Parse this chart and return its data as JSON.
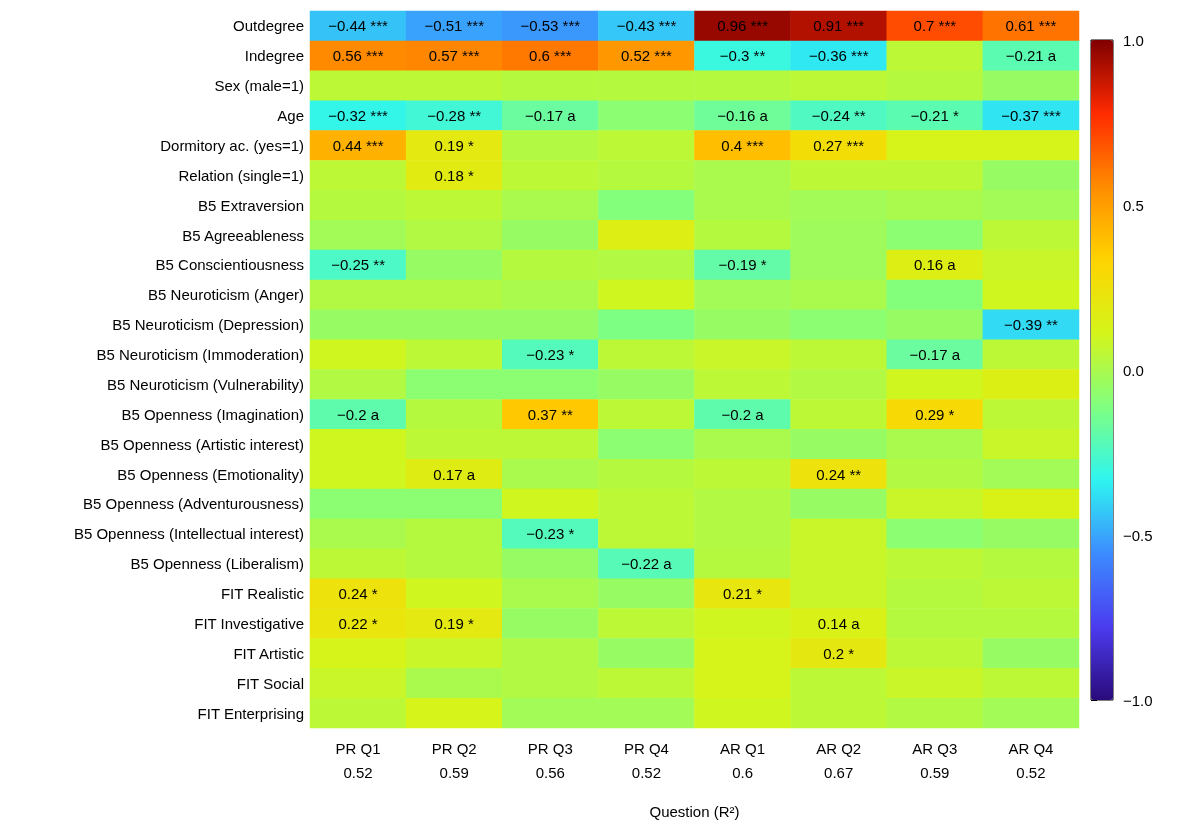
{
  "chart_data": {
    "type": "heatmap",
    "xlabel": "Question (R²)",
    "categories": [
      "PR Q1\n0.52",
      "PR Q2\n0.59",
      "PR Q3\n0.56",
      "PR Q4\n0.52",
      "AR Q1\n0.6",
      "AR Q2\n0.67",
      "AR Q3\n0.59",
      "AR Q4\n0.52"
    ],
    "y_categories": [
      "Outdegree",
      "Indegree",
      "Sex (male=1)",
      "Age",
      "Dormitory ac. (yes=1)",
      "Relation (single=1)",
      "B5 Extraversion",
      "B5 Agreeableness",
      "B5 Conscientiousness",
      "B5 Neuroticism (Anger)",
      "B5 Neuroticism (Depression)",
      "B5 Neuroticism (Immoderation)",
      "B5 Neuroticism (Vulnerability)",
      "B5 Openness (Imagination)",
      "B5 Openness (Artistic interest)",
      "B5 Openness (Emotionality)",
      "B5 Openness (Adventurousness)",
      "B5 Openness (Intellectual interest)",
      "B5 Openness (Liberalism)",
      "FIT Realistic",
      "FIT Investigative",
      "FIT Artistic",
      "FIT Social",
      "FIT Enterprising"
    ],
    "cells": [
      [
        -0.44,
        -0.51,
        -0.53,
        -0.43,
        0.96,
        0.91,
        0.7,
        0.61
      ],
      [
        0.56,
        0.57,
        0.6,
        0.52,
        -0.3,
        -0.36,
        0.05,
        -0.21
      ],
      [
        0.05,
        0.05,
        0.03,
        0.03,
        0.03,
        0.05,
        0.03,
        -0.05
      ],
      [
        -0.32,
        -0.28,
        -0.17,
        -0.08,
        -0.16,
        -0.24,
        -0.21,
        -0.37
      ],
      [
        0.44,
        0.19,
        0.02,
        0.05,
        0.4,
        0.27,
        0.12,
        0.12
      ],
      [
        0.05,
        0.18,
        0.05,
        0.03,
        0.0,
        0.05,
        0.05,
        -0.05
      ],
      [
        0.03,
        0.05,
        0.0,
        -0.1,
        0.0,
        -0.02,
        0.0,
        -0.02
      ],
      [
        -0.02,
        0.02,
        -0.05,
        0.16,
        0.03,
        -0.03,
        -0.08,
        0.05
      ],
      [
        -0.25,
        -0.05,
        0.03,
        0.02,
        -0.19,
        -0.03,
        0.16,
        0.08
      ],
      [
        0.02,
        0.02,
        0.0,
        0.1,
        -0.02,
        0.0,
        -0.1,
        0.1
      ],
      [
        -0.05,
        -0.05,
        -0.05,
        -0.12,
        -0.05,
        -0.08,
        -0.05,
        -0.39
      ],
      [
        0.1,
        0.05,
        -0.23,
        0.05,
        0.08,
        0.05,
        -0.17,
        0.05
      ],
      [
        0.02,
        -0.08,
        -0.08,
        -0.05,
        0.05,
        0.02,
        0.1,
        0.15
      ],
      [
        -0.2,
        0.03,
        0.37,
        0.05,
        -0.2,
        0.05,
        0.29,
        0.05
      ],
      [
        0.1,
        0.05,
        0.05,
        -0.08,
        0.0,
        -0.05,
        0.0,
        0.08
      ],
      [
        0.1,
        0.17,
        0.0,
        0.03,
        0.05,
        0.24,
        0.02,
        -0.02
      ],
      [
        -0.08,
        -0.08,
        0.1,
        0.05,
        0.02,
        -0.05,
        0.08,
        0.13
      ],
      [
        0.0,
        0.03,
        -0.23,
        0.05,
        0.02,
        0.08,
        -0.08,
        -0.05
      ],
      [
        0.05,
        0.03,
        -0.05,
        -0.22,
        0.03,
        0.08,
        0.05,
        0.03
      ],
      [
        0.24,
        0.1,
        0.0,
        -0.05,
        0.21,
        0.08,
        0.03,
        0.05
      ],
      [
        0.22,
        0.19,
        -0.05,
        0.05,
        0.1,
        0.14,
        0.03,
        0.03
      ],
      [
        0.12,
        0.08,
        0.02,
        -0.05,
        0.12,
        0.2,
        0.05,
        -0.05
      ],
      [
        0.08,
        0.0,
        0.02,
        0.05,
        0.12,
        0.05,
        0.08,
        0.05
      ],
      [
        0.05,
        0.12,
        -0.02,
        -0.02,
        0.1,
        0.05,
        0.02,
        -0.02
      ]
    ],
    "cell_labels": [
      [
        "−0.44 ***",
        "−0.51 ***",
        "−0.53 ***",
        "−0.43 ***",
        "0.96 ***",
        "0.91 ***",
        "0.7 ***",
        "0.61 ***"
      ],
      [
        "0.56 ***",
        "0.57 ***",
        "0.6 ***",
        "0.52 ***",
        "−0.3 **",
        "−0.36 ***",
        null,
        "−0.21 a"
      ],
      [
        null,
        null,
        null,
        null,
        null,
        null,
        null,
        null
      ],
      [
        "−0.32 ***",
        "−0.28 **",
        "−0.17 a",
        null,
        "−0.16 a",
        "−0.24 **",
        "−0.21 *",
        "−0.37 ***"
      ],
      [
        "0.44 ***",
        "0.19 *",
        null,
        null,
        "0.4 ***",
        "0.27 ***",
        null,
        null
      ],
      [
        null,
        "0.18 *",
        null,
        null,
        null,
        null,
        null,
        null
      ],
      [
        null,
        null,
        null,
        null,
        null,
        null,
        null,
        null
      ],
      [
        null,
        null,
        null,
        null,
        null,
        null,
        null,
        null
      ],
      [
        "−0.25 **",
        null,
        null,
        null,
        "−0.19 *",
        null,
        "0.16 a",
        null
      ],
      [
        null,
        null,
        null,
        null,
        null,
        null,
        null,
        null
      ],
      [
        null,
        null,
        null,
        null,
        null,
        null,
        null,
        "−0.39 **"
      ],
      [
        null,
        null,
        "−0.23 *",
        null,
        null,
        null,
        "−0.17 a",
        null
      ],
      [
        null,
        null,
        null,
        null,
        null,
        null,
        null,
        null
      ],
      [
        "−0.2 a",
        null,
        "0.37 **",
        null,
        "−0.2 a",
        null,
        "0.29 *",
        null
      ],
      [
        null,
        null,
        null,
        null,
        null,
        null,
        null,
        null
      ],
      [
        null,
        "0.17 a",
        null,
        null,
        null,
        "0.24 **",
        null,
        null
      ],
      [
        null,
        null,
        null,
        null,
        null,
        null,
        null,
        null
      ],
      [
        null,
        null,
        "−0.23 *",
        null,
        null,
        null,
        null,
        null
      ],
      [
        null,
        null,
        null,
        "−0.22 a",
        null,
        null,
        null,
        null
      ],
      [
        "0.24 *",
        null,
        null,
        null,
        "0.21 *",
        null,
        null,
        null
      ],
      [
        "0.22 *",
        "0.19 *",
        null,
        null,
        null,
        "0.14 a",
        null,
        null
      ],
      [
        null,
        null,
        null,
        null,
        null,
        "0.2 *",
        null,
        null
      ],
      [
        null,
        null,
        null,
        null,
        null,
        null,
        null,
        null
      ],
      [
        null,
        null,
        null,
        null,
        null,
        null,
        null,
        null
      ]
    ],
    "clim": [
      -1,
      1
    ],
    "cticks": [
      {
        "value": -1,
        "label": "−1.0"
      },
      {
        "value": -0.5,
        "label": "−0.5"
      },
      {
        "value": 0,
        "label": "0.0"
      },
      {
        "value": 0.5,
        "label": "0.5"
      },
      {
        "value": 1,
        "label": "1.0"
      }
    ]
  }
}
